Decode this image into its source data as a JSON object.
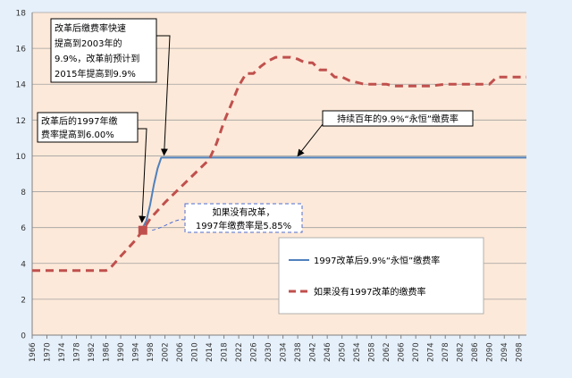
{
  "chart_data": {
    "type": "line",
    "title": "",
    "xlabel": "",
    "ylabel": "",
    "xlim": [
      1966,
      2100
    ],
    "ylim": [
      0,
      18
    ],
    "x_ticks": [
      1966,
      1970,
      1974,
      1978,
      1982,
      1986,
      1990,
      1994,
      1998,
      2002,
      2006,
      2010,
      2014,
      2018,
      2022,
      2026,
      2030,
      2034,
      2038,
      2042,
      2046,
      2050,
      2054,
      2058,
      2062,
      2066,
      2070,
      2074,
      2078,
      2082,
      2086,
      2090,
      2094,
      2098
    ],
    "y_ticks": [
      0,
      2,
      4,
      6,
      8,
      10,
      12,
      14,
      16,
      18
    ],
    "grid": "horizontal",
    "legend_position": "lower-right",
    "series": [
      {
        "name": "1997改革后9.9%“永恒”缴费率",
        "color": "#4f81bd",
        "style": "solid",
        "x": [
          1996,
          1997,
          1998,
          1999,
          2000,
          2001,
          2002,
          2010,
          2020,
          2040,
          2060,
          2080,
          2100
        ],
        "y": [
          6.0,
          6.4,
          7.3,
          8.4,
          9.3,
          9.9,
          9.9,
          9.9,
          9.9,
          9.9,
          9.9,
          9.9,
          9.9
        ]
      },
      {
        "name": "如果没有1997改革的缴费率",
        "color": "#c0504d",
        "style": "dashed",
        "x": [
          1966,
          1970,
          1974,
          1978,
          1982,
          1986,
          1987,
          1990,
          1994,
          1996,
          1998,
          2002,
          2006,
          2010,
          2014,
          2016,
          2018,
          2020,
          2022,
          2024,
          2026,
          2028,
          2030,
          2032,
          2034,
          2036,
          2038,
          2040,
          2042,
          2044,
          2046,
          2048,
          2050,
          2052,
          2054,
          2056,
          2058,
          2060,
          2062,
          2064,
          2066,
          2070,
          2074,
          2078,
          2082,
          2086,
          2088,
          2090,
          2092,
          2094,
          2098,
          2100
        ],
        "y": [
          3.6,
          3.6,
          3.6,
          3.6,
          3.6,
          3.6,
          3.7,
          4.4,
          5.3,
          5.85,
          6.5,
          7.4,
          8.2,
          9.0,
          9.8,
          10.7,
          11.9,
          12.9,
          13.9,
          14.6,
          14.6,
          15.0,
          15.3,
          15.5,
          15.5,
          15.5,
          15.4,
          15.2,
          15.2,
          14.8,
          14.8,
          14.4,
          14.4,
          14.2,
          14.1,
          14.0,
          14.0,
          14.0,
          14.0,
          13.9,
          13.9,
          13.9,
          13.9,
          14.0,
          14.0,
          14.0,
          14.0,
          14.0,
          14.4,
          14.4,
          14.4,
          14.4
        ]
      }
    ],
    "points": [
      {
        "name": "1997-point",
        "x": 1996,
        "y": 5.85,
        "color": "#c0504d"
      }
    ],
    "annotations": [
      {
        "name": "annotation-2003",
        "lines": [
          "改革后缴费率快速",
          "提高到2003年的",
          "9.9%，改革前预计到",
          "2015年提高到9.9%"
        ],
        "target": {
          "x": 2002,
          "y": 9.9
        }
      },
      {
        "name": "annotation-1997",
        "lines": [
          "改革后的1997年缴",
          "费率提高到6.00%"
        ],
        "target": {
          "x": 1996,
          "y": 6.0
        }
      },
      {
        "name": "annotation-no-reform",
        "lines": [
          "如果没有改革，",
          "1997年缴费率是5.85%"
        ],
        "target": {
          "x": 1998,
          "y": 5.85
        }
      },
      {
        "name": "annotation-permanent",
        "lines": [
          "持续百年的9.9%“永恒”缴费率"
        ],
        "target": {
          "x": 2038,
          "y": 9.9
        }
      }
    ]
  }
}
